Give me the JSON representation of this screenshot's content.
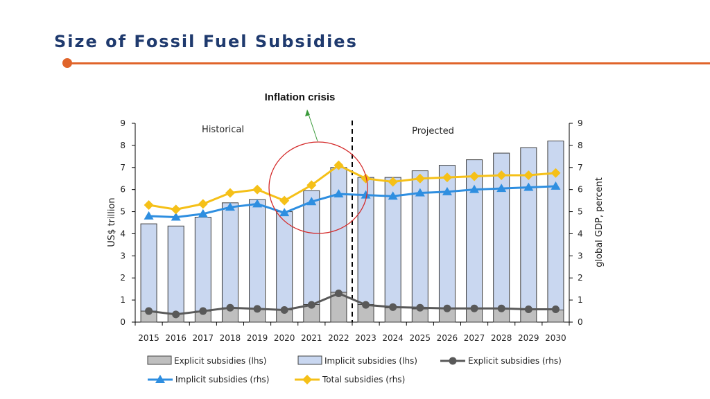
{
  "slide": {
    "title": "Size of Fossil Fuel Subsidies"
  },
  "annotation": {
    "text": "Inflation crisis"
  },
  "colors": {
    "title": "#1f3a6e",
    "accent_rule": "#e0642a",
    "annotation_arrow": "#3a9a3a",
    "annotation_circle": "#d42a2a"
  },
  "chart_data": {
    "type": "bar",
    "categories": [
      "2015",
      "2016",
      "2017",
      "2018",
      "2019",
      "2020",
      "2021",
      "2022",
      "2023",
      "2024",
      "2025",
      "2026",
      "2027",
      "2028",
      "2029",
      "2030"
    ],
    "regions": [
      {
        "label": "Historical",
        "from": "2015",
        "to": "2022"
      },
      {
        "label": "Projected",
        "from": "2023",
        "to": "2030"
      }
    ],
    "ylabel": "US$ trillion",
    "y2label": "global GDP, percent",
    "ylim": [
      0,
      9
    ],
    "y2lim": [
      0,
      9
    ],
    "yticks": [
      0,
      1,
      2,
      3,
      4,
      5,
      6,
      7,
      8,
      9
    ],
    "grid": false,
    "legend_position": "bottom",
    "series": [
      {
        "name": "Explicit subsidies (lhs)",
        "type": "bar",
        "axis": "left",
        "color": "#bfbfbf",
        "values": [
          0.5,
          0.4,
          0.5,
          0.65,
          0.6,
          0.55,
          0.8,
          1.35,
          0.8,
          0.65,
          0.6,
          0.6,
          0.6,
          0.6,
          0.55,
          0.55
        ]
      },
      {
        "name": "Implicit subsidies (lhs)",
        "type": "bar",
        "axis": "left",
        "color": "#c9d7f0",
        "values": [
          3.95,
          3.95,
          4.25,
          4.75,
          4.95,
          4.45,
          5.15,
          5.65,
          5.75,
          5.9,
          6.25,
          6.5,
          6.75,
          7.05,
          7.35,
          7.65
        ]
      },
      {
        "name": "Explicit subsidies (rhs)",
        "type": "line",
        "axis": "right",
        "marker": "circle",
        "color": "#595959",
        "values": [
          0.5,
          0.35,
          0.5,
          0.65,
          0.6,
          0.55,
          0.78,
          1.3,
          0.78,
          0.68,
          0.65,
          0.62,
          0.62,
          0.62,
          0.58,
          0.58
        ]
      },
      {
        "name": "Implicit subsidies (rhs)",
        "type": "line",
        "axis": "right",
        "marker": "triangle",
        "color": "#2e8ee0",
        "values": [
          4.8,
          4.75,
          4.9,
          5.2,
          5.35,
          4.95,
          5.45,
          5.8,
          5.75,
          5.7,
          5.85,
          5.9,
          6.0,
          6.05,
          6.1,
          6.15
        ]
      },
      {
        "name": "Total subsidies (rhs)",
        "type": "line",
        "axis": "right",
        "marker": "diamond",
        "color": "#f5c018",
        "values": [
          5.3,
          5.1,
          5.35,
          5.85,
          6.0,
          5.5,
          6.2,
          7.1,
          6.5,
          6.35,
          6.5,
          6.55,
          6.6,
          6.65,
          6.65,
          6.75
        ]
      }
    ]
  }
}
